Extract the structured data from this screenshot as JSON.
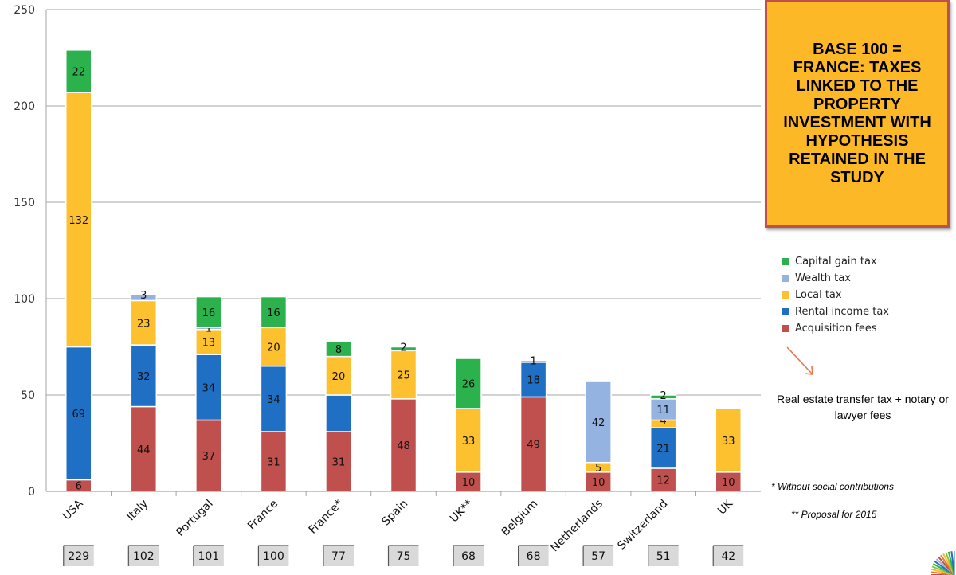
{
  "title": "BASE 100 = FRANCE: TAXES LINKED TO THE PROPERTY INVESTMENT WITH HYPOTHESIS RETAINED IN THE STUDY",
  "notes": {
    "transfer_fees": "Real estate transfer tax + notary or lawyer fees",
    "social": "* Without social contributions",
    "proposal": "** Proposal for 2015"
  },
  "chart_data": {
    "type": "bar",
    "stacked": true,
    "title": "BASE 100 = FRANCE: TAXES LINKED TO THE PROPERTY INVESTMENT WITH HYPOTHESIS RETAINED IN THE STUDY",
    "xlabel": "",
    "ylabel": "",
    "ylim": [
      0,
      250
    ],
    "yticks": [
      0,
      50,
      100,
      150,
      200,
      250
    ],
    "grid": true,
    "legend_position": "right",
    "categories": [
      "USA",
      "Italy",
      "Portugal",
      "France",
      "France*",
      "Spain",
      "UK**",
      "Belgium",
      "Netherlands",
      "Switzerland",
      "UK"
    ],
    "totals": [
      229,
      102,
      101,
      100,
      77,
      75,
      68,
      68,
      57,
      51,
      42
    ],
    "series": [
      {
        "name": "Acquisition fees",
        "color": "#c0504d",
        "values": [
          6,
          44,
          37,
          31,
          31,
          48,
          10,
          49,
          10,
          12,
          10
        ]
      },
      {
        "name": "Rental income tax",
        "color": "#1f6fc5",
        "values": [
          69,
          32,
          34,
          34,
          19,
          0,
          0,
          18,
          0,
          21,
          0
        ]
      },
      {
        "name": "Local tax",
        "color": "#fdc02f",
        "values": [
          132,
          23,
          13,
          20,
          20,
          25,
          33,
          0,
          5,
          4,
          33
        ]
      },
      {
        "name": "Wealth tax",
        "color": "#95b3e0",
        "values": [
          0,
          3,
          1,
          0,
          0,
          0,
          0,
          1,
          42,
          11,
          0
        ]
      },
      {
        "name": "Capital gain tax",
        "color": "#2bb24c",
        "values": [
          22,
          0,
          16,
          16,
          8,
          2,
          26,
          0,
          0,
          2,
          0
        ]
      }
    ],
    "data_labels": [
      [
        "6",
        "44",
        "37",
        "31",
        "31",
        "48",
        "10",
        "49",
        "10",
        "12",
        "10"
      ],
      [
        "69",
        "32",
        "34",
        "34",
        "",
        "",
        "",
        "18",
        "",
        "21",
        ""
      ],
      [
        "132",
        "23",
        "13",
        "20",
        "20",
        "25",
        "33",
        "",
        "5",
        "4",
        "33"
      ],
      [
        "",
        "3",
        "1",
        "",
        "",
        "",
        "",
        "1",
        "42",
        "11",
        ""
      ],
      [
        "22",
        "",
        "16",
        "16",
        "8",
        "2",
        "26",
        "",
        "",
        "2",
        ""
      ]
    ]
  }
}
